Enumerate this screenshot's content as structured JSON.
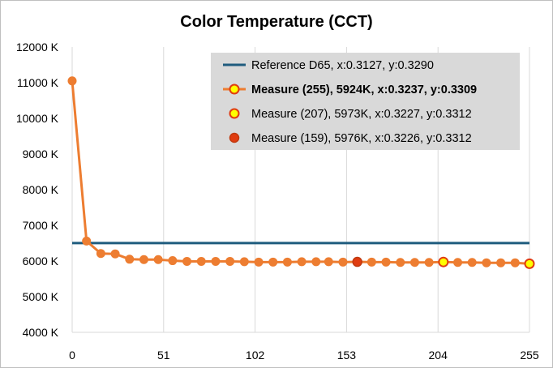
{
  "colors": {
    "reference": "#1f5c7e",
    "measure_line": "#ed7d31",
    "marker_255_fill": "#ffff00",
    "marker_255_stroke": "#e03c10",
    "marker_207_fill": "#ffff00",
    "marker_207_stroke": "#e03c10",
    "marker_159_fill": "#e03c10",
    "marker_159_stroke": "#c0390f",
    "grid": "#d9d9d9",
    "legend_bg": "#d9d9d9",
    "frame": "#bfbfbf"
  },
  "chart_data": {
    "type": "line",
    "title": "Color Temperature (CCT)",
    "xlabel": "",
    "ylabel": "",
    "xlim": [
      0,
      255
    ],
    "ylim": [
      4000,
      12000
    ],
    "x_ticks": [
      "0",
      "51",
      "102",
      "153",
      "204",
      "255"
    ],
    "y_ticks": [
      "4000 K",
      "5000 K",
      "6000 K",
      "7000 K",
      "8000 K",
      "9000 K",
      "10000 K",
      "11000 K",
      "12000 K"
    ],
    "grid": "vertical",
    "legend_position": "top-right",
    "series": [
      {
        "name": "Reference D65, x:0.3127, y:0.3290",
        "kind": "reference-line",
        "y": 6504
      },
      {
        "name": "Measure (255), 5924K, x:0.3237, y:0.3309",
        "kind": "measured",
        "x": [
          0,
          8,
          16,
          24,
          32,
          40,
          48,
          56,
          64,
          72,
          80,
          88,
          96,
          104,
          112,
          120,
          128,
          136,
          143,
          151,
          159,
          167,
          175,
          183,
          191,
          199,
          207,
          215,
          223,
          231,
          239,
          247,
          255
        ],
        "y": [
          11050,
          6560,
          6210,
          6200,
          6050,
          6040,
          6040,
          6010,
          5990,
          5990,
          5990,
          5990,
          5980,
          5970,
          5970,
          5970,
          5980,
          5980,
          5980,
          5970,
          5976,
          5970,
          5970,
          5960,
          5960,
          5960,
          5973,
          5960,
          5960,
          5950,
          5950,
          5950,
          5924
        ]
      },
      {
        "name": "Measure (207), 5973K, x:0.3227, y:0.3312",
        "kind": "highlight",
        "x": [
          207
        ],
        "y": [
          5973
        ]
      },
      {
        "name": "Measure (159), 5976K, x:0.3226, y:0.3312",
        "kind": "highlight",
        "x": [
          159
        ],
        "y": [
          5976
        ]
      }
    ]
  }
}
